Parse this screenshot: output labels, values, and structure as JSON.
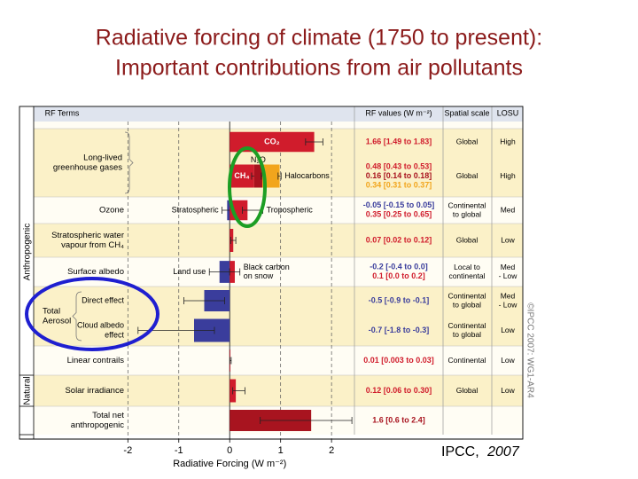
{
  "title": [
    "Radiative forcing of climate (1750 to present):",
    "Important contributions from air pollutants"
  ],
  "credit": [
    "IPCC,",
    "2007"
  ],
  "chart_data": {
    "type": "bar",
    "orientation": "horizontal",
    "xlabel": "Radiative Forcing (W m⁻²)",
    "xlim": [
      -3.85,
      2.45
    ],
    "xticks": [
      -2,
      -1,
      0,
      1,
      2
    ],
    "grid": true,
    "columns": [
      "RF Terms",
      "RF values (W m⁻²)",
      "Spatial scale",
      "LOSU"
    ],
    "copyright": "©IPCC 2007: WG1-AR4",
    "sections": [
      {
        "label": "Anthropogenic",
        "items": [
          {
            "label": [
              "Long-lived",
              "greenhouse gases"
            ],
            "rows": [
              {
                "segments": [
                  {
                    "name": [
                      "CO₂"
                    ],
                    "value": 1.66,
                    "range": [
                      1.49,
                      1.83
                    ],
                    "value_label": "1.66 [1.49 to 1.83]",
                    "color": "#d01c2c"
                  }
                ],
                "spatial": [
                  "Global"
                ],
                "losu": [
                  "High"
                ]
              },
              {
                "segments": [
                  {
                    "name": [
                      "CH₄"
                    ],
                    "value": 0.48,
                    "range": [
                      0.43,
                      0.53
                    ],
                    "value_label": "0.48 [0.43 to 0.53]",
                    "color": "#d01c2c"
                  },
                  {
                    "name": [
                      "N₂O"
                    ],
                    "value": 0.16,
                    "range": [
                      0.14,
                      0.18
                    ],
                    "value_label": "0.16 [0.14 to 0.18]",
                    "color": "#a8121e"
                  },
                  {
                    "name": [
                      "Halocarbons"
                    ],
                    "value": 0.34,
                    "range": [
                      0.31,
                      0.37
                    ],
                    "value_label": "0.34 [0.31 to 0.37]",
                    "color": "#f2a51c"
                  }
                ],
                "spatial": [
                  "Global"
                ],
                "losu": [
                  "High"
                ]
              }
            ]
          },
          {
            "label": [
              "Ozone"
            ],
            "rows": [
              {
                "segments": [
                  {
                    "name": [
                      "Stratospheric"
                    ],
                    "value": -0.05,
                    "range": [
                      -0.15,
                      0.05
                    ],
                    "value_label": "-0.05 [-0.15 to 0.05]",
                    "color": "#3a3d9c"
                  },
                  {
                    "name": [
                      "Tropospheric"
                    ],
                    "value": 0.35,
                    "range": [
                      0.25,
                      0.65
                    ],
                    "value_label": "0.35 [0.25 to 0.65]",
                    "color": "#d01c2c"
                  }
                ],
                "spatial": [
                  "Continental",
                  "to global"
                ],
                "losu": [
                  "Med"
                ]
              }
            ]
          },
          {
            "label": [
              "Stratospheric water",
              "vapour from CH₄"
            ],
            "rows": [
              {
                "segments": [
                  {
                    "value": 0.07,
                    "range": [
                      0.02,
                      0.12
                    ],
                    "value_label": "0.07 [0.02 to 0.12]",
                    "color": "#d01c2c"
                  }
                ],
                "spatial": [
                  "Global"
                ],
                "losu": [
                  "Low"
                ]
              }
            ]
          },
          {
            "label": [
              "Surface albedo"
            ],
            "rows": [
              {
                "segments": [
                  {
                    "name": [
                      "Land use"
                    ],
                    "value": -0.2,
                    "range": [
                      -0.4,
                      0.0
                    ],
                    "value_label": "-0.2 [-0.4 to 0.0]",
                    "color": "#3a3d9c"
                  },
                  {
                    "name": [
                      "Black carbon",
                      "on snow"
                    ],
                    "value": 0.1,
                    "range": [
                      0.0,
                      0.2
                    ],
                    "value_label": "0.1 [0.0 to 0.2]",
                    "color": "#d01c2c"
                  }
                ],
                "spatial": [
                  "Local to",
                  "continental"
                ],
                "losu": [
                  "Med",
                  "- Low"
                ]
              }
            ]
          },
          {
            "label": [
              "Total",
              "Aerosol"
            ],
            "rows": [
              {
                "sublabel": [
                  "Direct effect"
                ],
                "segments": [
                  {
                    "value": -0.5,
                    "range": [
                      -0.9,
                      -0.1
                    ],
                    "value_label": "-0.5 [-0.9 to -0.1]",
                    "color": "#3a3d9c"
                  }
                ],
                "spatial": [
                  "Continental",
                  "to global"
                ],
                "losu": [
                  "Med",
                  "- Low"
                ]
              },
              {
                "sublabel": [
                  "Cloud albedo",
                  "effect"
                ],
                "segments": [
                  {
                    "value": -0.7,
                    "range": [
                      -1.8,
                      -0.3
                    ],
                    "value_label": "-0.7 [-1.8 to -0.3]",
                    "color": "#3a3d9c"
                  }
                ],
                "spatial": [
                  "Continental",
                  "to global"
                ],
                "losu": [
                  "Low"
                ]
              }
            ]
          },
          {
            "label": [
              "Linear contrails"
            ],
            "rows": [
              {
                "segments": [
                  {
                    "value": 0.01,
                    "range": [
                      0.003,
                      0.03
                    ],
                    "value_label": "0.01 [0.003 to 0.03]",
                    "color": "#d01c2c"
                  }
                ],
                "spatial": [
                  "Continental"
                ],
                "losu": [
                  "Low"
                ]
              }
            ]
          }
        ]
      },
      {
        "label": "Natural",
        "items": [
          {
            "label": [
              "Solar irradiance"
            ],
            "rows": [
              {
                "segments": [
                  {
                    "value": 0.12,
                    "range": [
                      0.06,
                      0.3
                    ],
                    "value_label": "0.12 [0.06 to 0.30]",
                    "color": "#d01c2c"
                  }
                ],
                "spatial": [
                  "Global"
                ],
                "losu": [
                  "Low"
                ]
              }
            ]
          }
        ]
      },
      {
        "items": [
          {
            "label": [
              "Total net",
              "anthropogenic"
            ],
            "rows": [
              {
                "segments": [
                  {
                    "value": 1.6,
                    "range": [
                      0.6,
                      2.4
                    ],
                    "value_label": "1.6 [0.6 to 2.4]",
                    "color": "#a8141f"
                  }
                ]
              }
            ]
          }
        ]
      }
    ]
  }
}
